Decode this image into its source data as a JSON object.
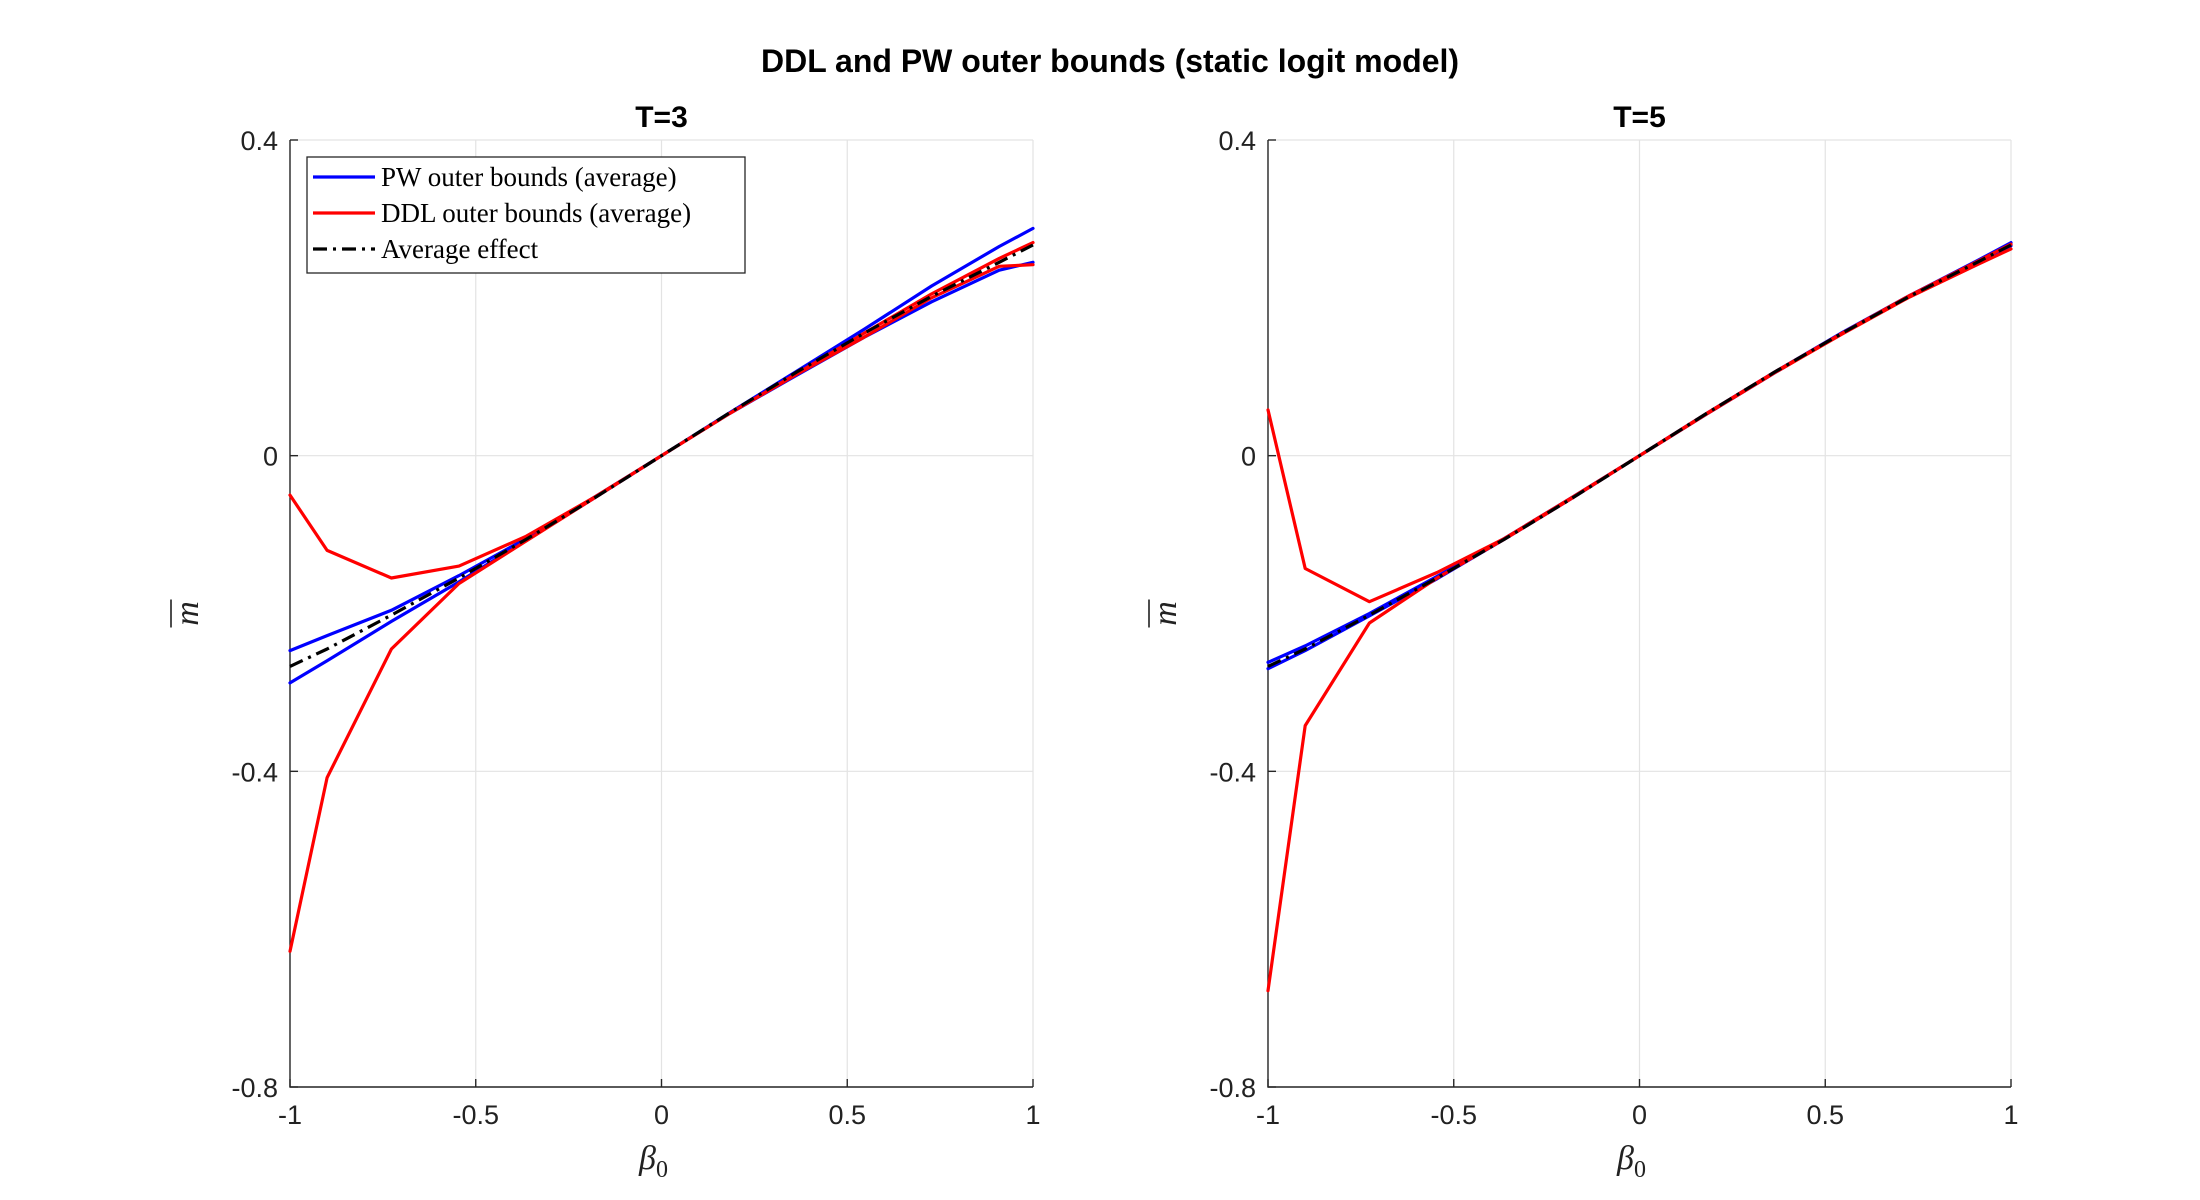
{
  "figure_title": "DDL and PW outer bounds (static logit model)",
  "colors": {
    "pw": "#0000ff",
    "ddl": "#ff0000",
    "avg": "#000000"
  },
  "chart_data": [
    {
      "type": "line",
      "title": "T=3",
      "xlabel": "β",
      "xlabel_sub": "0",
      "ylabel": "m",
      "xlim": [
        -1,
        1
      ],
      "ylim": [
        -0.8,
        0.4
      ],
      "xticks": [
        -1,
        -0.5,
        0,
        0.5,
        1
      ],
      "xtick_labels": [
        "-1",
        "-0.5",
        "0",
        "0.5",
        "1"
      ],
      "yticks": [
        -0.8,
        -0.4,
        0,
        0.4
      ],
      "ytick_labels": [
        "-0.8",
        "-0.4",
        "0",
        "0.4"
      ],
      "legend": [
        "PW outer bounds (average)",
        "DDL outer bounds (average)",
        "Average effect"
      ],
      "legend_position": "top-left",
      "series": [
        {
          "name": "PW outer bounds (average) - upper",
          "color_key": "pw",
          "style": "solid",
          "x": [
            -1,
            -0.9,
            -0.727,
            -0.545,
            -0.364,
            -0.182,
            0,
            0.182,
            0.364,
            0.545,
            0.727,
            0.909,
            1
          ],
          "y": [
            -0.247,
            -0.228,
            -0.196,
            -0.152,
            -0.105,
            -0.053,
            0,
            0.053,
            0.102,
            0.15,
            0.195,
            0.235,
            0.245
          ]
        },
        {
          "name": "PW outer bounds (average) - lower",
          "color_key": "pw",
          "style": "solid",
          "x": [
            -1,
            -0.9,
            -0.727,
            -0.545,
            -0.364,
            -0.182,
            0,
            0.182,
            0.364,
            0.545,
            0.727,
            0.909,
            1
          ],
          "y": [
            -0.288,
            -0.26,
            -0.21,
            -0.16,
            -0.107,
            -0.054,
            0,
            0.054,
            0.107,
            0.16,
            0.215,
            0.265,
            0.288
          ]
        },
        {
          "name": "DDL outer bounds (average) - upper",
          "color_key": "ddl",
          "style": "solid",
          "x": [
            -1,
            -0.9,
            -0.727,
            -0.545,
            -0.364,
            -0.182,
            0,
            0.182,
            0.364,
            0.545,
            0.727,
            0.909,
            1
          ],
          "y": [
            -0.05,
            -0.12,
            -0.155,
            -0.14,
            -0.102,
            -0.053,
            0,
            0.053,
            0.104,
            0.155,
            0.205,
            0.25,
            0.27
          ]
        },
        {
          "name": "DDL outer bounds (average) - lower",
          "color_key": "ddl",
          "style": "solid",
          "x": [
            -1,
            -0.9,
            -0.727,
            -0.545,
            -0.364,
            -0.182,
            0,
            0.182,
            0.364,
            0.545,
            0.727,
            0.909,
            1
          ],
          "y": [
            -0.628,
            -0.408,
            -0.245,
            -0.162,
            -0.108,
            -0.054,
            0,
            0.053,
            0.103,
            0.15,
            0.2,
            0.24,
            0.242
          ]
        },
        {
          "name": "Average effect",
          "color_key": "avg",
          "style": "dashdot",
          "x": [
            -1,
            -0.9,
            -0.727,
            -0.545,
            -0.364,
            -0.182,
            0,
            0.182,
            0.364,
            0.545,
            0.727,
            0.909,
            1
          ],
          "y": [
            -0.267,
            -0.245,
            -0.202,
            -0.155,
            -0.106,
            -0.054,
            0,
            0.054,
            0.106,
            0.155,
            0.202,
            0.245,
            0.267
          ]
        }
      ]
    },
    {
      "type": "line",
      "title": "T=5",
      "xlabel": "β",
      "xlabel_sub": "0",
      "ylabel": "m",
      "xlim": [
        -1,
        1
      ],
      "ylim": [
        -0.8,
        0.4
      ],
      "xticks": [
        -1,
        -0.5,
        0,
        0.5,
        1
      ],
      "xtick_labels": [
        "-1",
        "-0.5",
        "0",
        "0.5",
        "1"
      ],
      "yticks": [
        -0.8,
        -0.4,
        0,
        0.4
      ],
      "ytick_labels": [
        "-0.8",
        "-0.4",
        "0",
        "0.4"
      ],
      "series": [
        {
          "name": "PW outer bounds (average) - upper",
          "color_key": "pw",
          "style": "solid",
          "x": [
            -1,
            -0.9,
            -0.727,
            -0.545,
            -0.364,
            -0.182,
            0,
            0.182,
            0.364,
            0.545,
            0.727,
            0.909,
            1
          ],
          "y": [
            -0.262,
            -0.241,
            -0.2,
            -0.153,
            -0.105,
            -0.053,
            0,
            0.053,
            0.105,
            0.155,
            0.202,
            0.244,
            0.266
          ]
        },
        {
          "name": "PW outer bounds (average) - lower",
          "color_key": "pw",
          "style": "solid",
          "x": [
            -1,
            -0.9,
            -0.727,
            -0.545,
            -0.364,
            -0.182,
            0,
            0.182,
            0.364,
            0.545,
            0.727,
            0.909,
            1
          ],
          "y": [
            -0.27,
            -0.247,
            -0.203,
            -0.156,
            -0.106,
            -0.054,
            0,
            0.054,
            0.106,
            0.156,
            0.203,
            0.247,
            0.27
          ]
        },
        {
          "name": "DDL outer bounds (average) - upper",
          "color_key": "ddl",
          "style": "solid",
          "x": [
            -1,
            -0.9,
            -0.727,
            -0.545,
            -0.364,
            -0.182,
            0,
            0.182,
            0.364,
            0.545,
            0.727,
            0.909,
            1
          ],
          "y": [
            0.058,
            -0.143,
            -0.185,
            -0.148,
            -0.105,
            -0.053,
            0,
            0.054,
            0.106,
            0.155,
            0.203,
            0.246,
            0.268
          ]
        },
        {
          "name": "DDL outer bounds (average) - lower",
          "color_key": "ddl",
          "style": "solid",
          "x": [
            -1,
            -0.9,
            -0.727,
            -0.545,
            -0.364,
            -0.182,
            0,
            0.182,
            0.364,
            0.545,
            0.727,
            0.909,
            1
          ],
          "y": [
            -0.678,
            -0.342,
            -0.212,
            -0.155,
            -0.106,
            -0.054,
            0,
            0.053,
            0.105,
            0.154,
            0.201,
            0.242,
            0.262
          ]
        },
        {
          "name": "Average effect",
          "color_key": "avg",
          "style": "dashdot",
          "x": [
            -1,
            -0.9,
            -0.727,
            -0.545,
            -0.364,
            -0.182,
            0,
            0.182,
            0.364,
            0.545,
            0.727,
            0.909,
            1
          ],
          "y": [
            -0.267,
            -0.245,
            -0.202,
            -0.155,
            -0.106,
            -0.054,
            0,
            0.054,
            0.106,
            0.155,
            0.202,
            0.245,
            0.267
          ]
        }
      ]
    }
  ]
}
